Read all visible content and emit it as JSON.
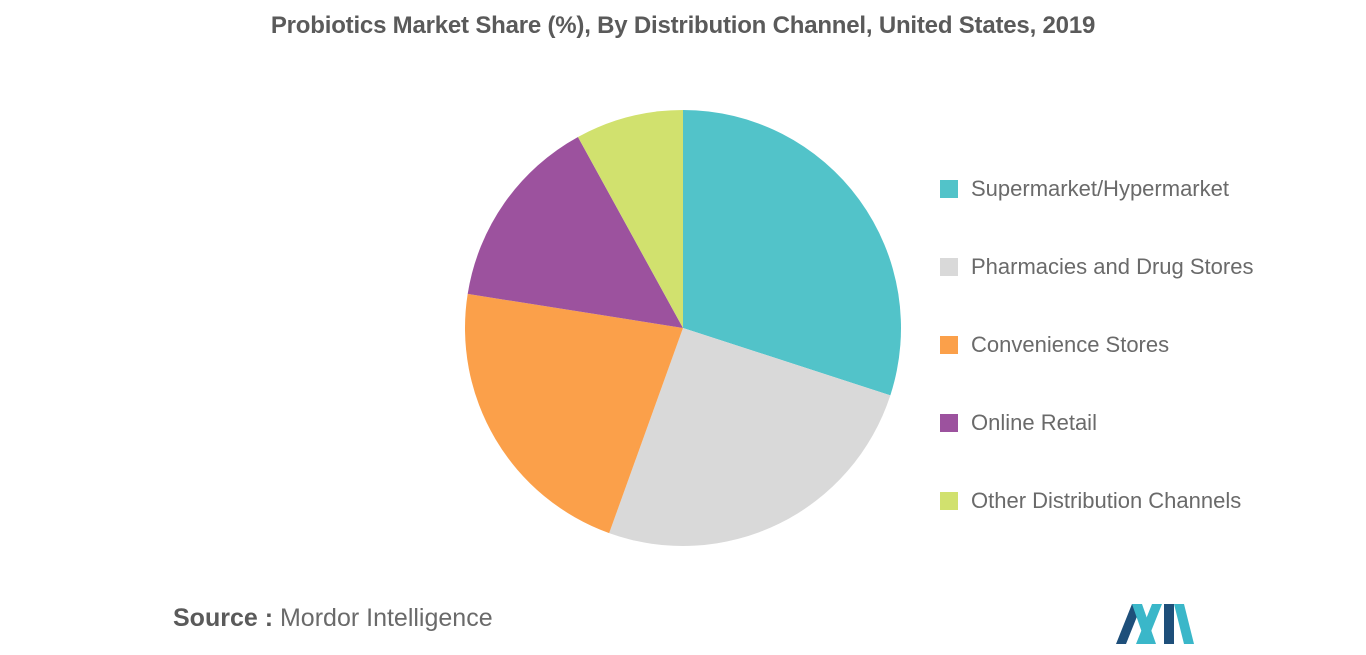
{
  "chart_data": {
    "type": "pie",
    "title": "Probiotics Market Share (%), By Distribution Channel, United States, 2019",
    "categories": [
      "Supermarket/Hypermarket",
      "Pharmacies and Drug Stores",
      "Convenience Stores",
      "Online Retail",
      "Other Distribution Channels"
    ],
    "values": [
      30,
      25.5,
      22,
      14.5,
      8
    ],
    "colors": [
      "#52C3C9",
      "#D9D9D9",
      "#FBA04A",
      "#9C529E",
      "#D1E16E"
    ],
    "start_angle": "12 o'clock",
    "direction": "clockwise",
    "legend_position": "right"
  },
  "source": {
    "label": "Source :",
    "text": "Mordor Intelligence"
  },
  "logo": {
    "icon": "mordor-intelligence-logo-icon",
    "colors": [
      "#1E4F7A",
      "#3AB7C9"
    ]
  }
}
